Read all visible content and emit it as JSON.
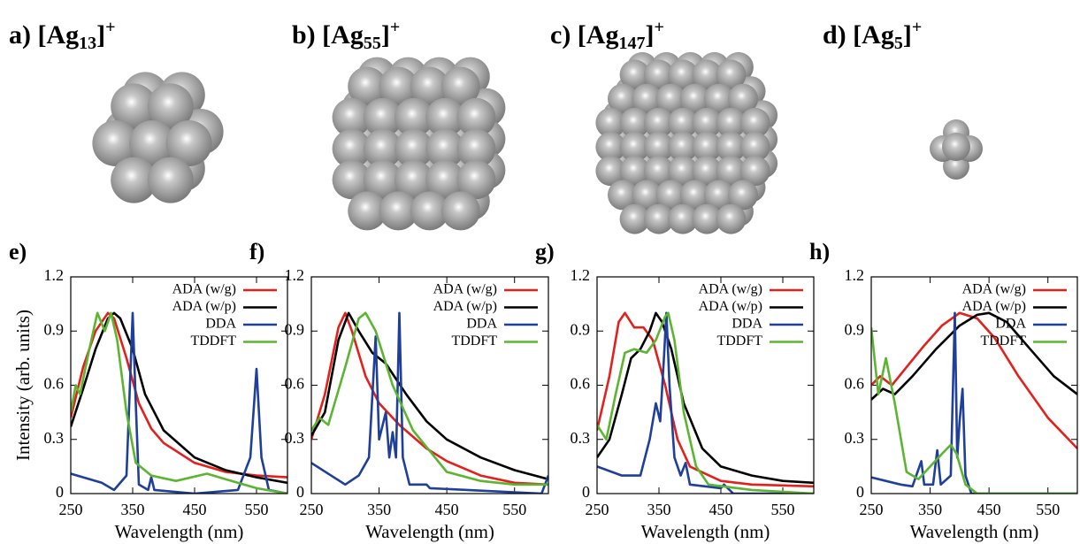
{
  "panels": [
    {
      "prefix": "a) [Ag",
      "size": "13",
      "suffix": "]",
      "charge": "+"
    },
    {
      "prefix": "b) [Ag",
      "size": "55",
      "suffix": "]",
      "charge": "+"
    },
    {
      "prefix": "c) [Ag",
      "size": "147",
      "suffix": "]",
      "charge": "+"
    },
    {
      "prefix": "d) [Ag",
      "size": "5",
      "suffix": "]",
      "charge": "+"
    }
  ],
  "chart_data": [
    {
      "type": "line",
      "label": "e)",
      "ylabel": "Intensity (arb. units)",
      "xlabel": "Wavelength (nm)",
      "xlim": [
        250,
        600
      ],
      "xticks": [
        250,
        350,
        450,
        550
      ],
      "ylim": [
        0,
        1.2
      ],
      "yticks": [
        0,
        0.3,
        0.6,
        0.9,
        1.2
      ],
      "series": [
        {
          "name": "ADA (w/g)",
          "color": "#e3201b",
          "x": [
            250,
            270,
            290,
            310,
            320,
            340,
            360,
            380,
            400,
            450,
            500,
            550,
            600
          ],
          "values": [
            0.42,
            0.7,
            0.9,
            1.0,
            0.97,
            0.75,
            0.5,
            0.36,
            0.28,
            0.17,
            0.12,
            0.1,
            0.09
          ]
        },
        {
          "name": "ADA (w/p)",
          "color": "#000000",
          "x": [
            250,
            270,
            290,
            310,
            320,
            330,
            350,
            370,
            400,
            450,
            500,
            550,
            600
          ],
          "values": [
            0.37,
            0.58,
            0.8,
            0.97,
            1.0,
            0.97,
            0.8,
            0.55,
            0.35,
            0.2,
            0.13,
            0.09,
            0.06
          ]
        },
        {
          "name": "DDA",
          "color": "#1f3f9a",
          "x": [
            250,
            300,
            320,
            340,
            350,
            355,
            360,
            375,
            380,
            385,
            450,
            520,
            540,
            550,
            558,
            570,
            600
          ],
          "values": [
            0.11,
            0.06,
            0.02,
            0.1,
            1.0,
            0.5,
            0.05,
            0.02,
            0.09,
            0.02,
            0.0,
            0.02,
            0.2,
            0.69,
            0.2,
            0.02,
            0.0
          ]
        },
        {
          "name": "TDDFT",
          "color": "#5bb531",
          "x": [
            250,
            258,
            265,
            280,
            293,
            305,
            315,
            325,
            340,
            355,
            380,
            420,
            470,
            500,
            550,
            600
          ],
          "values": [
            0.45,
            0.6,
            0.55,
            0.8,
            1.0,
            0.9,
            1.0,
            0.85,
            0.45,
            0.17,
            0.1,
            0.07,
            0.11,
            0.08,
            0.03,
            0.0
          ]
        }
      ]
    },
    {
      "type": "line",
      "label": "f)",
      "xlabel": "Wavelength (nm)",
      "xlim": [
        250,
        600
      ],
      "xticks": [
        250,
        350,
        450,
        550
      ],
      "ylim": [
        0,
        1.2
      ],
      "yticks": [
        0,
        0.3,
        0.6,
        0.9,
        1.2
      ],
      "series": [
        {
          "name": "ADA (w/g)",
          "color": "#e3201b",
          "x": [
            250,
            270,
            290,
            300,
            310,
            330,
            350,
            380,
            420,
            450,
            500,
            550,
            600
          ],
          "values": [
            0.3,
            0.55,
            0.92,
            1.0,
            0.9,
            0.65,
            0.5,
            0.38,
            0.25,
            0.18,
            0.1,
            0.06,
            0.05
          ]
        },
        {
          "name": "ADA (w/p)",
          "color": "#000000",
          "x": [
            250,
            270,
            290,
            305,
            320,
            340,
            360,
            390,
            420,
            450,
            500,
            550,
            600
          ],
          "values": [
            0.32,
            0.45,
            0.85,
            1.0,
            0.9,
            0.78,
            0.72,
            0.55,
            0.4,
            0.3,
            0.2,
            0.13,
            0.08
          ]
        },
        {
          "name": "DDA",
          "color": "#1f3f9a",
          "x": [
            250,
            300,
            320,
            335,
            345,
            350,
            360,
            365,
            370,
            375,
            380,
            385,
            395,
            420,
            425,
            590,
            600
          ],
          "values": [
            0.17,
            0.05,
            0.1,
            0.2,
            0.87,
            0.3,
            0.45,
            0.2,
            0.34,
            0.2,
            1.0,
            0.2,
            0.05,
            0.05,
            0.03,
            0.0,
            0.1
          ]
        },
        {
          "name": "TDDFT",
          "color": "#5bb531",
          "x": [
            250,
            262,
            275,
            300,
            320,
            330,
            345,
            370,
            400,
            450,
            500,
            550,
            600
          ],
          "values": [
            0.35,
            0.42,
            0.38,
            0.7,
            0.97,
            1.0,
            0.9,
            0.6,
            0.35,
            0.12,
            0.07,
            0.05,
            0.05
          ]
        }
      ]
    },
    {
      "type": "line",
      "label": "g)",
      "xlabel": "Wavelength (nm)",
      "xlim": [
        250,
        600
      ],
      "xticks": [
        250,
        350,
        450,
        550
      ],
      "ylim": [
        0,
        1.2
      ],
      "yticks": [
        0,
        0.3,
        0.6,
        0.9,
        1.2
      ],
      "series": [
        {
          "name": "ADA (w/g)",
          "color": "#e3201b",
          "x": [
            250,
            270,
            285,
            295,
            310,
            325,
            340,
            360,
            380,
            400,
            450,
            500,
            600
          ],
          "values": [
            0.35,
            0.65,
            0.95,
            1.0,
            0.92,
            0.92,
            0.85,
            0.6,
            0.3,
            0.15,
            0.07,
            0.05,
            0.04
          ]
        },
        {
          "name": "ADA (w/p)",
          "color": "#000000",
          "x": [
            250,
            270,
            290,
            305,
            320,
            335,
            345,
            355,
            370,
            390,
            420,
            450,
            500,
            550,
            600
          ],
          "values": [
            0.2,
            0.3,
            0.55,
            0.75,
            0.8,
            0.9,
            1.0,
            0.95,
            0.8,
            0.5,
            0.25,
            0.15,
            0.1,
            0.07,
            0.06
          ]
        },
        {
          "name": "DDA",
          "color": "#1f3f9a",
          "x": [
            250,
            290,
            320,
            335,
            345,
            352,
            358,
            362,
            367,
            375,
            385,
            393,
            400,
            450,
            455,
            470,
            600
          ],
          "values": [
            0.15,
            0.1,
            0.1,
            0.3,
            0.5,
            0.4,
            0.75,
            1.0,
            0.6,
            0.2,
            0.1,
            0.17,
            0.05,
            0.03,
            0.05,
            0.0,
            0.0
          ]
        },
        {
          "name": "TDDFT",
          "color": "#5bb531",
          "x": [
            250,
            265,
            280,
            295,
            310,
            330,
            345,
            360,
            365,
            375,
            390,
            410,
            430,
            500,
            600
          ],
          "values": [
            0.38,
            0.3,
            0.55,
            0.78,
            0.8,
            0.78,
            0.85,
            0.98,
            1.0,
            0.85,
            0.45,
            0.15,
            0.05,
            0.02,
            0.0
          ]
        }
      ]
    },
    {
      "type": "line",
      "label": "h)",
      "xlabel": "Wavelength (nm)",
      "xlim": [
        250,
        600
      ],
      "xticks": [
        250,
        350,
        450,
        550
      ],
      "ylim": [
        0,
        1.2
      ],
      "yticks": [
        0,
        0.3,
        0.6,
        0.9,
        1.2
      ],
      "series": [
        {
          "name": "ADA (w/g)",
          "color": "#e3201b",
          "x": [
            250,
            265,
            285,
            310,
            340,
            370,
            400,
            430,
            460,
            500,
            550,
            600
          ],
          "values": [
            0.6,
            0.65,
            0.6,
            0.7,
            0.82,
            0.93,
            1.0,
            0.97,
            0.86,
            0.65,
            0.42,
            0.25
          ]
        },
        {
          "name": "ADA (w/p)",
          "color": "#000000",
          "x": [
            250,
            270,
            290,
            320,
            360,
            400,
            430,
            450,
            480,
            520,
            560,
            600
          ],
          "values": [
            0.52,
            0.58,
            0.55,
            0.65,
            0.8,
            0.93,
            0.99,
            1.0,
            0.95,
            0.8,
            0.65,
            0.55
          ]
        },
        {
          "name": "DDA",
          "color": "#1f3f9a",
          "x": [
            250,
            300,
            320,
            335,
            340,
            355,
            362,
            368,
            385,
            392,
            396,
            400,
            405,
            410,
            420,
            600
          ],
          "values": [
            0.09,
            0.05,
            0.04,
            0.18,
            0.05,
            0.05,
            0.24,
            0.05,
            0.1,
            1.0,
            0.2,
            0.4,
            0.58,
            0.1,
            0.0,
            0.0
          ]
        },
        {
          "name": "TDDFT",
          "color": "#5bb531",
          "x": [
            250,
            262,
            275,
            290,
            310,
            330,
            350,
            370,
            385,
            395,
            410,
            430,
            600
          ],
          "values": [
            0.92,
            0.55,
            0.75,
            0.5,
            0.12,
            0.08,
            0.15,
            0.22,
            0.27,
            0.22,
            0.05,
            0.0,
            0.0
          ]
        }
      ]
    }
  ]
}
